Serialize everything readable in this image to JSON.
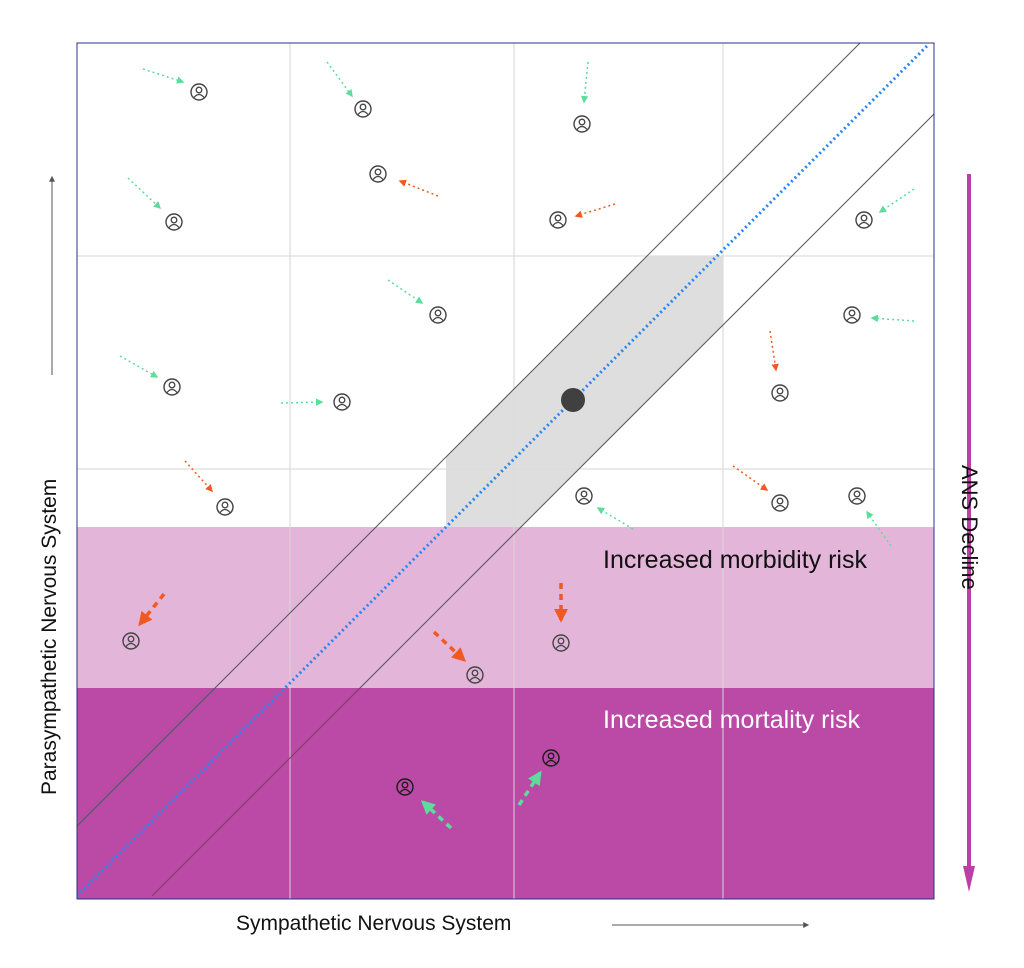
{
  "labels": {
    "x_axis": "Sympathetic Nervous System",
    "y_axis": "Parasympathetic Nervous System",
    "decline_arrow": "ANS Decline",
    "morbidity_zone": "Increased morbidity risk",
    "mortality_zone": "Increased mortality risk"
  },
  "colors": {
    "morbidity_zone": "#e3b5d9",
    "mortality_zone": "#bb4aa6",
    "decline_arrow": "#bb3fa5",
    "balance_line": "#2a86f0",
    "healthy_band": "#dcdcdc",
    "improving_arrow": "#5ddc9a",
    "worsening_arrow": "#f05a22",
    "center_point": "#404040"
  },
  "icons": {
    "person": "person-circle-icon",
    "center": "optimal-balance-dot"
  }
}
